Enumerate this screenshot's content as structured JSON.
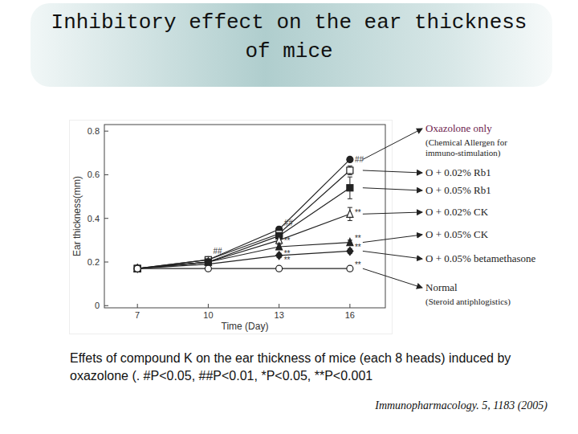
{
  "chart_data": {
    "type": "line",
    "title": "Inhibitory effect on the ear thickness of mice",
    "x_label": "Time (Day)",
    "y_label": "Ear thickness(mm)",
    "caption": "Effets of compound K on the ear thickness of mice (each 8 heads) induced by oxazolone (. #P<0.05, ##P<0.01, *P<0.05, **P<0.001",
    "source": "Immunopharmacology. 5, 1183 (2005)",
    "x": [
      7,
      10,
      13,
      16
    ],
    "xlim": [
      5.6,
      17.5
    ],
    "xticks": [
      7,
      10,
      13,
      16
    ],
    "ylim": [
      -0.01,
      0.83
    ],
    "yticks": [
      0,
      0.2,
      0.4,
      0.6,
      0.8
    ],
    "grid": false,
    "series": [
      {
        "name": "Oxazolone only",
        "description": "(Chemical Allergen for immuno-stimulation)",
        "color": "#222222",
        "marker": "circle",
        "values": [
          0.17,
          0.21,
          0.35,
          0.67
        ],
        "errors": [
          0.01,
          0.01,
          0.01,
          0.01
        ]
      },
      {
        "name": "O + 0.02% Rb1",
        "color": "#222222",
        "marker": "square-open",
        "values": [
          0.17,
          0.21,
          0.33,
          0.62
        ],
        "errors": [
          0.01,
          0.01,
          0.01,
          0.02
        ]
      },
      {
        "name": "O + 0.05% Rb1",
        "color": "#222222",
        "marker": "square",
        "values": [
          0.17,
          0.2,
          0.32,
          0.54
        ],
        "errors": [
          0.01,
          0.01,
          0.01,
          0.05
        ]
      },
      {
        "name": "O + 0.02% CK",
        "color": "#222222",
        "marker": "triangle-open",
        "values": [
          0.17,
          0.2,
          0.3,
          0.42
        ],
        "errors": [
          0.01,
          0.01,
          0.01,
          0.03
        ]
      },
      {
        "name": "O + 0.05% CK",
        "color": "#222222",
        "marker": "triangle",
        "values": [
          0.17,
          0.2,
          0.27,
          0.29
        ],
        "errors": [
          0.01,
          0.01,
          0.01,
          0.01
        ]
      },
      {
        "name": "O + 0.05% betamethasone",
        "color": "#222222",
        "marker": "diamond",
        "values": [
          0.17,
          0.19,
          0.23,
          0.25
        ],
        "errors": [
          0.01,
          0.01,
          0.01,
          0.01
        ]
      },
      {
        "name": "Normal",
        "description": "(Steroid antiphlogistics)",
        "color": "#222222",
        "marker": "circle-open",
        "values": [
          0.17,
          0.17,
          0.17,
          0.17
        ],
        "errors": [
          0.01,
          0.01,
          0.01,
          0.01
        ]
      }
    ],
    "annotations": [
      {
        "text": "##",
        "x": 16,
        "y": 0.67
      },
      {
        "text": "##",
        "x": 13,
        "y": 0.38
      },
      {
        "text": "##",
        "x": 10,
        "y": 0.25
      },
      {
        "text": "**",
        "x": 16,
        "y": 0.43
      },
      {
        "text": "**",
        "x": 16,
        "y": 0.31
      },
      {
        "text": "**",
        "x": 16,
        "y": 0.27
      },
      {
        "text": "**",
        "x": 16,
        "y": 0.19
      },
      {
        "text": "**",
        "x": 13,
        "y": 0.3
      },
      {
        "text": "**",
        "x": 13,
        "y": 0.24
      },
      {
        "text": "**",
        "x": 13,
        "y": 0.21
      }
    ]
  }
}
